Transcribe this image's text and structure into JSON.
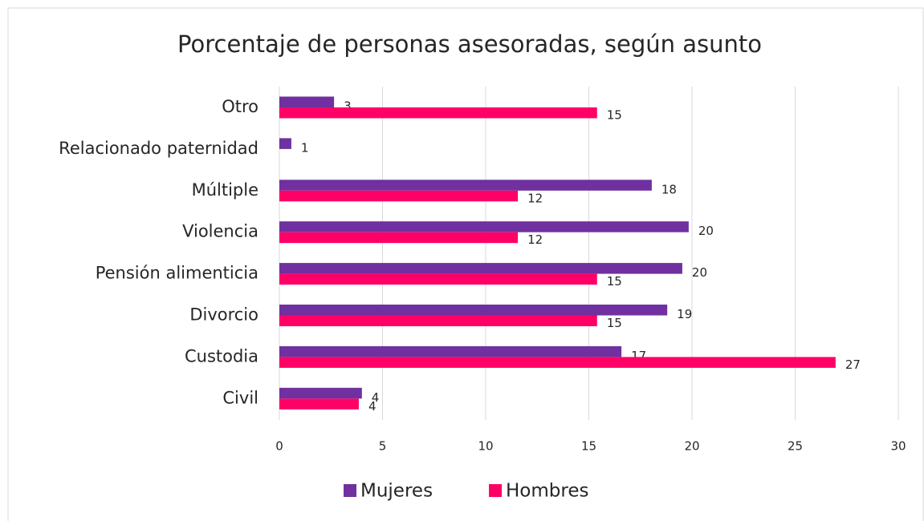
{
  "chart_data": {
    "type": "bar",
    "orientation": "horizontal",
    "title": "Porcentaje de personas asesoradas, según asunto",
    "categories": [
      "Otro",
      "Relacionado paternidad",
      "Múltiple",
      "Violencia",
      "Pensión alimenticia",
      "Divorcio",
      "Custodia",
      "Civil"
    ],
    "series": [
      {
        "name": "Mujeres",
        "color": "#7030a0",
        "values": [
          2.65,
          0.58,
          18.05,
          19.84,
          19.53,
          18.8,
          16.58,
          4.0
        ],
        "value_labels": [
          "3",
          "1",
          "18",
          "20",
          "20",
          "19",
          "17",
          "4"
        ]
      },
      {
        "name": "Hombres",
        "color": "#ff0066",
        "values": [
          15.4,
          null,
          11.56,
          11.56,
          15.4,
          15.4,
          26.96,
          3.85
        ],
        "value_labels": [
          "15",
          null,
          "12",
          "12",
          "15",
          "15",
          "27",
          "4"
        ]
      }
    ],
    "xlim": [
      0,
      30
    ],
    "xticks": [
      0,
      5,
      10,
      15,
      20,
      25,
      30
    ],
    "grid": true,
    "legend": "bottom"
  }
}
